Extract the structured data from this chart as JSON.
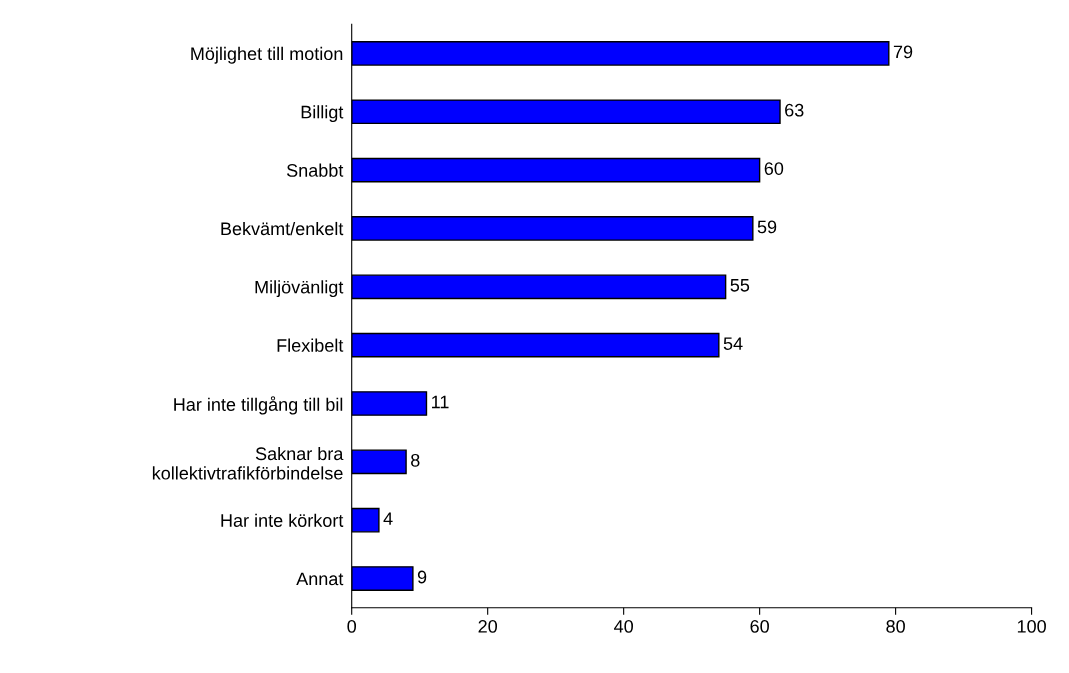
{
  "chart_data": {
    "type": "bar",
    "orientation": "horizontal",
    "categories": [
      "Möjlighet till motion",
      "Billigt",
      "Snabbt",
      "Bekvämt/enkelt",
      "Miljövänligt",
      "Flexibelt",
      "Har inte tillgång till bil",
      "Saknar bra\nkollektivtrafikförbindelse",
      "Har inte körkort",
      "Annat"
    ],
    "values": [
      79,
      63,
      60,
      59,
      55,
      54,
      11,
      8,
      4,
      9
    ],
    "color": "#0000ff",
    "xlim": [
      0,
      100
    ],
    "xticks": [
      0,
      20,
      40,
      60,
      80,
      100
    ],
    "data_labels": true,
    "grid": false,
    "legend": false
  }
}
